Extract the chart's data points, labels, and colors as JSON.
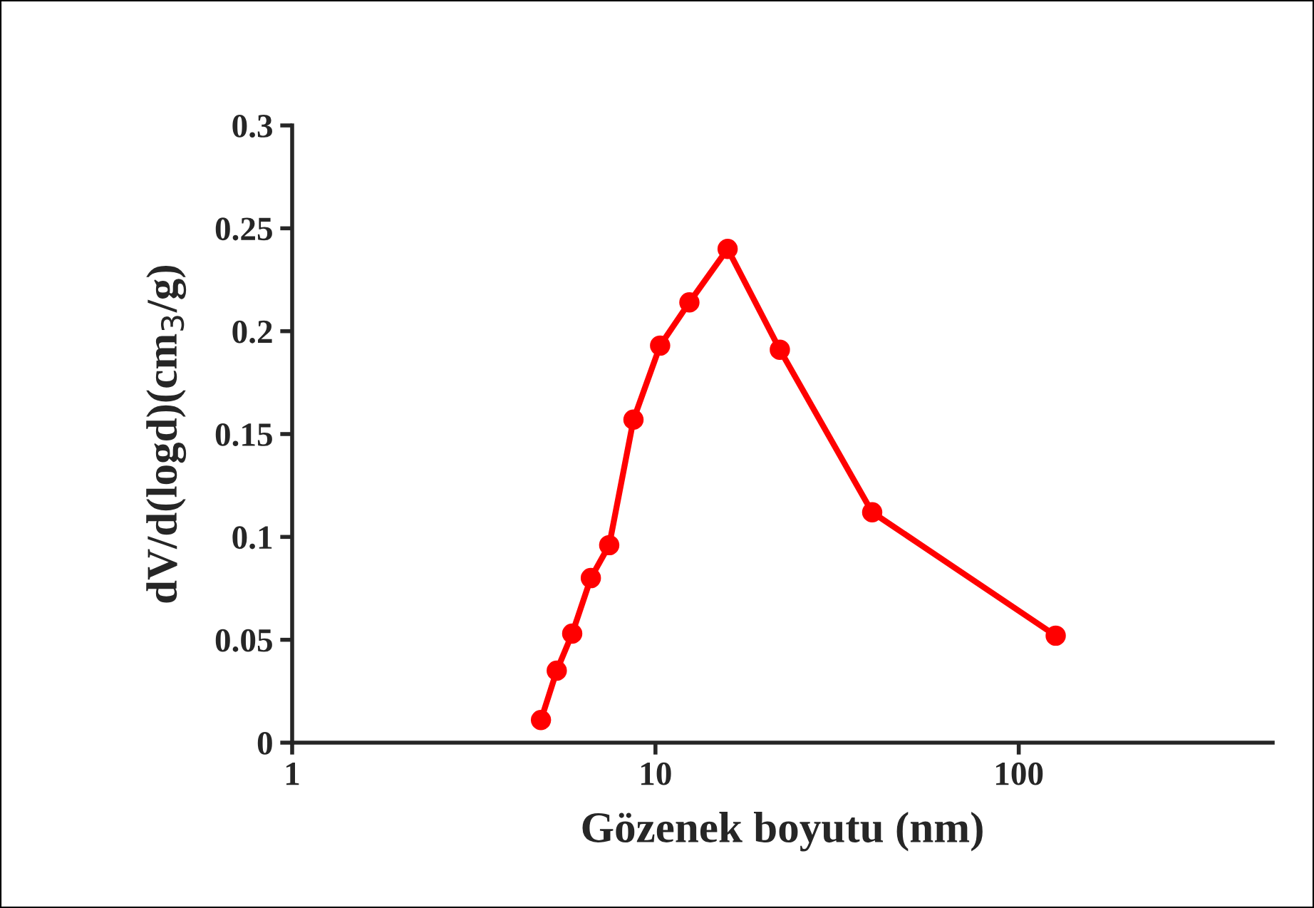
{
  "chart_data": {
    "type": "line",
    "xlabel": "Gözenek boyutu (nm)",
    "ylabel": "dV/d(logd)(cm$_{3}$/g)",
    "log": "x",
    "xlim": [
      1,
      500
    ],
    "xticks": [
      1,
      10,
      100
    ],
    "ylim": [
      0,
      0.3
    ],
    "yticks": [
      0,
      0.05,
      0.1,
      0.15,
      0.2,
      0.25,
      0.3
    ],
    "grid": false,
    "legend": false,
    "marker": "circle",
    "line_style": "solid",
    "series": [
      {
        "color": "#ff0000",
        "x": [
          4.84,
          5.35,
          5.9,
          6.64,
          7.46,
          8.7,
          10.3,
          12.4,
          15.8,
          22.0,
          39.5,
          126.4
        ],
        "values": [
          0.011,
          0.035,
          0.053,
          0.08,
          0.096,
          0.157,
          0.193,
          0.214,
          0.24,
          0.191,
          0.112,
          0.052
        ]
      }
    ]
  }
}
